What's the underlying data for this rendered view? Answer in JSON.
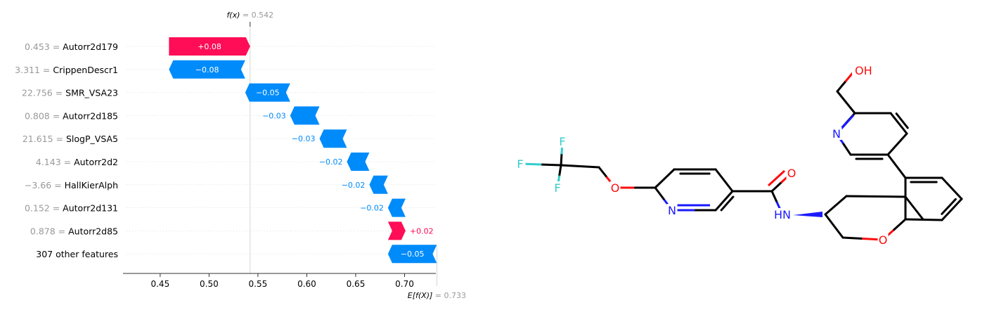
{
  "chart_data": {
    "type": "waterfall",
    "fx_label": "f(x)",
    "fx_value": "0.542",
    "base_label": "E[f(X)]",
    "base_value": "0.733",
    "xlim": [
      0.412,
      0.732
    ],
    "xticks": [
      0.45,
      0.5,
      0.55,
      0.6,
      0.65,
      0.7
    ],
    "xtick_labels": [
      "0.45",
      "0.50",
      "0.55",
      "0.60",
      "0.65",
      "0.70"
    ],
    "features": [
      {
        "value": "0.453",
        "name": "Autorr2d179",
        "from": 0.459,
        "to": 0.542,
        "label": "+0.08"
      },
      {
        "value": "3.311",
        "name": "CrippenDescr1",
        "from": 0.537,
        "to": 0.459,
        "label": "−0.08"
      },
      {
        "value": "22.756",
        "name": "SMR_VSA23",
        "from": 0.583,
        "to": 0.537,
        "label": "−0.05"
      },
      {
        "value": "0.808",
        "name": "Autorr2d185",
        "from": 0.613,
        "to": 0.583,
        "label": "−0.03"
      },
      {
        "value": "21.615",
        "name": "SlogP_VSA5",
        "from": 0.641,
        "to": 0.613,
        "label": "−0.03"
      },
      {
        "value": "4.143",
        "name": "Autorr2d2",
        "from": 0.664,
        "to": 0.641,
        "label": "−0.02"
      },
      {
        "value": "−3.66",
        "name": "HallKierAlph",
        "from": 0.683,
        "to": 0.664,
        "label": "−0.02"
      },
      {
        "value": "0.152",
        "name": "Autorr2d131",
        "from": 0.701,
        "to": 0.683,
        "label": "−0.02"
      },
      {
        "value": "0.878",
        "name": "Autorr2d85",
        "from": 0.683,
        "to": 0.701,
        "label": "+0.02"
      },
      {
        "value": "",
        "name": "307 other features",
        "from": 0.733,
        "to": 0.683,
        "label": "−0.05"
      }
    ],
    "colors": {
      "positive": "#ff0d57",
      "negative": "#008bfb"
    }
  },
  "molecule": {
    "atom_labels": {
      "f1": "F",
      "f2": "F",
      "f3": "F",
      "o_ether": "O",
      "n_pyr1": "N",
      "o_carbonyl": "O",
      "nh": "HN",
      "o_ring": "O",
      "n_pyr2": "N",
      "oh": "OH"
    },
    "colors": {
      "fluorine": "#33cccc",
      "oxygen": "#ff0d0d",
      "nitrogen": "#1a1aff",
      "bond": "#000000"
    }
  }
}
